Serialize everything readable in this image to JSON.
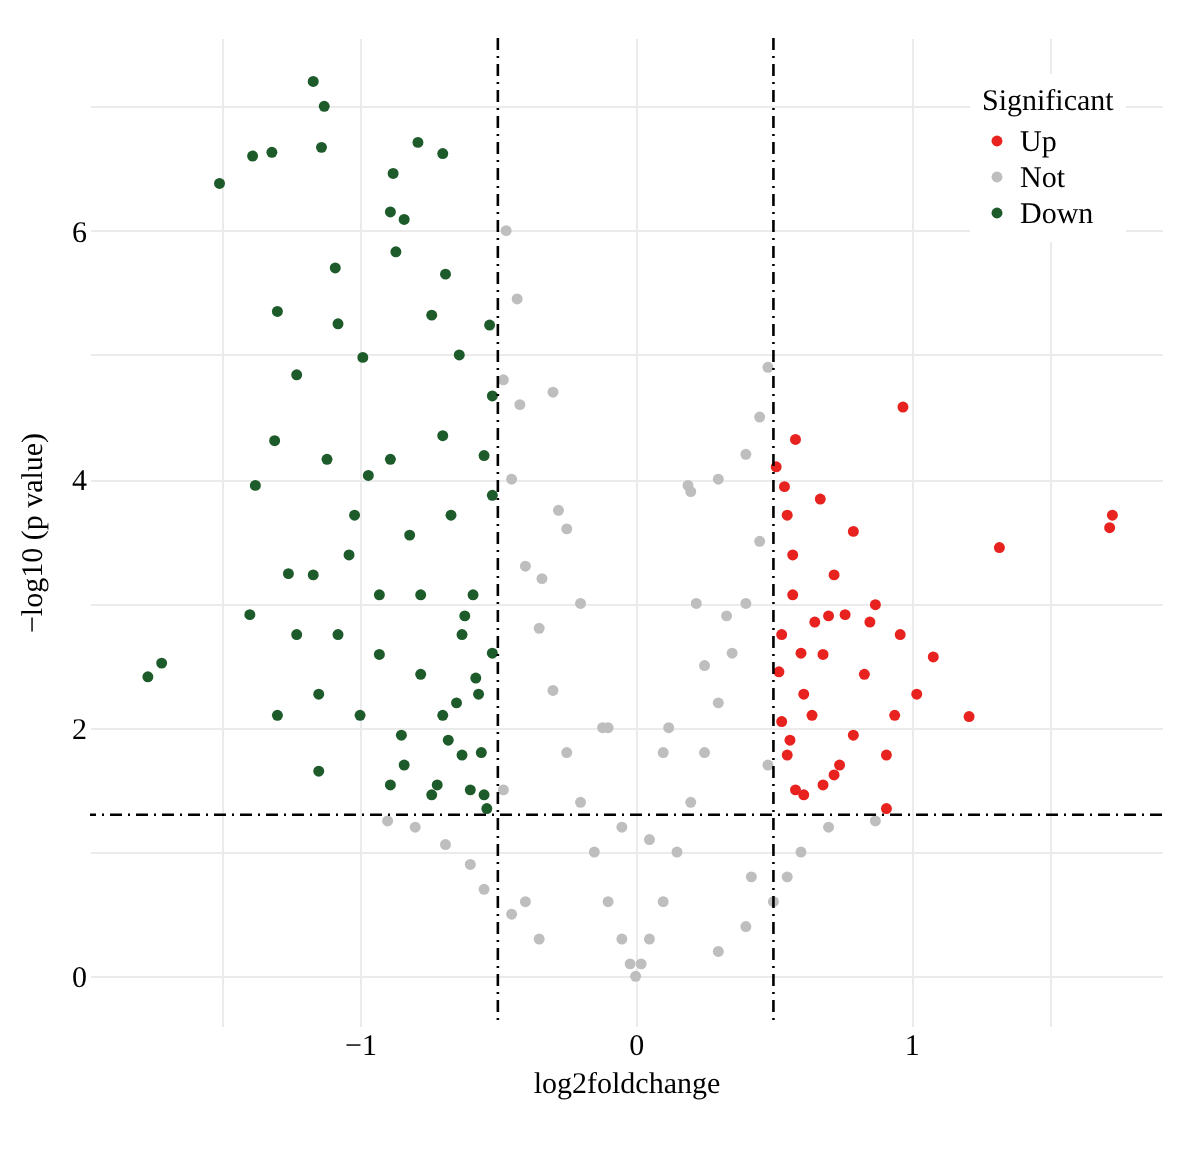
{
  "chart_data": {
    "type": "scatter",
    "xlabel": "log2foldchange",
    "ylabel": "−log10 (p value)",
    "legend_title": "Significant",
    "legend": "top right",
    "grid": true,
    "marker": "circle",
    "xlim": [
      -1.98,
      1.91
    ],
    "ylim": [
      -0.4,
      7.55
    ],
    "xticks": [
      {
        "value": -1.5,
        "label": null
      },
      -1,
      0,
      1,
      {
        "value": 1.5,
        "label": null
      }
    ],
    "yticks": [
      0,
      {
        "value": 1,
        "label": null
      },
      2,
      {
        "value": 3,
        "label": null
      },
      4,
      {
        "value": 5,
        "label": null
      },
      6,
      {
        "value": 7,
        "label": null
      }
    ],
    "ref_lines": [
      {
        "axis": "x",
        "value": -0.5,
        "line_style": "dashed",
        "color": "#000000"
      },
      {
        "axis": "x",
        "value": 0.5,
        "line_style": "dashed",
        "color": "#000000"
      },
      {
        "axis": "y",
        "value": 1.3,
        "line_style": "dashed",
        "color": "#000000"
      }
    ],
    "series": [
      {
        "name": "Up",
        "color": "#e8231f",
        "x": [
          0.97,
          1.73,
          1.72,
          1.32,
          0.58,
          0.54,
          0.67,
          0.79,
          0.57,
          1.08,
          0.96,
          1.21,
          0.87,
          0.76,
          0.68,
          0.61,
          0.55,
          0.91,
          0.79,
          0.72,
          0.64,
          0.53,
          0.57,
          1.02,
          0.83,
          0.68,
          0.61,
          0.91,
          0.55,
          0.72,
          0.94,
          0.51,
          0.52,
          0.56,
          0.6,
          0.65,
          0.7,
          0.74,
          0.85,
          0.58,
          0.53
        ],
        "values": [
          4.58,
          3.71,
          3.61,
          3.45,
          4.32,
          3.94,
          3.84,
          3.58,
          3.39,
          2.57,
          2.75,
          2.09,
          2.99,
          2.91,
          2.59,
          2.27,
          1.78,
          1.35,
          1.94,
          1.62,
          2.1,
          2.75,
          3.07,
          2.27,
          2.43,
          1.54,
          1.46,
          1.78,
          3.71,
          3.23,
          2.1,
          4.1,
          2.45,
          1.9,
          2.6,
          2.85,
          2.9,
          1.7,
          2.85,
          1.5,
          2.05
        ]
      },
      {
        "name": "Not",
        "color": "#bebebe",
        "x": [
          0,
          -0.02,
          0.02,
          -0.05,
          0.05,
          -0.1,
          0.1,
          -0.15,
          0.15,
          -0.2,
          0.2,
          -0.25,
          0.25,
          -0.3,
          0.3,
          -0.35,
          0.35,
          -0.4,
          0.4,
          -0.45,
          0.45,
          -0.48,
          0.48,
          -0.47,
          -0.3,
          -0.42,
          0.3,
          0.2,
          0.22,
          -0.1,
          0.1,
          -0.05,
          0.05,
          -0.2,
          -0.25,
          0.4,
          0.45,
          -0.12,
          0.12,
          -0.8,
          -0.69,
          -0.6,
          -0.55,
          -0.45,
          -0.35,
          0.6,
          0.7,
          0.87,
          0.55,
          0.4,
          0.3,
          -0.9,
          0.5,
          0.19,
          -0.43,
          -0.28,
          -0.34,
          0.33,
          0.25,
          -0.48,
          0.48,
          -0.4,
          0.42
        ],
        "values": [
          0,
          0.1,
          0.1,
          0.3,
          0.3,
          0.6,
          0.6,
          1,
          1,
          1.4,
          1.4,
          1.8,
          1.8,
          2.3,
          2.2,
          2.8,
          2.6,
          3.3,
          3,
          4,
          3.5,
          4.8,
          4.9,
          6,
          4.7,
          4.6,
          4,
          3.9,
          3,
          2,
          1.8,
          1.2,
          1.1,
          3,
          3.6,
          4.2,
          4.5,
          2,
          2,
          1.2,
          1.06,
          0.9,
          0.7,
          0.5,
          0.3,
          1,
          1.2,
          1.25,
          0.8,
          0.4,
          0.2,
          1.25,
          0.6,
          3.95,
          5.45,
          3.75,
          3.2,
          2.9,
          2.5,
          1.5,
          1.7,
          0.6,
          0.8
        ]
      },
      {
        "name": "Down",
        "color": "#1e5b2b",
        "x": [
          -1.17,
          -1.13,
          -1.14,
          -1.39,
          -1.32,
          -1.51,
          -0.79,
          -0.7,
          -0.88,
          -0.89,
          -0.84,
          -0.87,
          -1.09,
          -1.3,
          -0.69,
          -1.08,
          -0.99,
          -1.23,
          -0.74,
          -0.64,
          -1.31,
          -1.12,
          -1.38,
          -0.89,
          -1.02,
          -1.17,
          -1.26,
          -1.72,
          -1.77,
          -1.3,
          -1.15,
          -1.4,
          -0.93,
          -1.08,
          -0.78,
          -0.89,
          -0.74,
          -0.63,
          -0.55,
          -0.59,
          -0.52,
          -0.52,
          -0.53,
          -0.7,
          -0.82,
          -0.97,
          -1.04,
          -1.15,
          -1,
          -0.85,
          -0.7,
          -0.57,
          -1.23,
          -0.67,
          -0.78,
          -0.55,
          -0.93,
          -0.63,
          -0.72,
          -0.84,
          -0.54,
          -0.6,
          -0.65,
          -0.58,
          -0.52,
          -0.56,
          -0.62,
          -0.68
        ],
        "values": [
          7.2,
          7,
          6.67,
          6.6,
          6.63,
          6.38,
          6.71,
          6.62,
          6.46,
          6.15,
          6.09,
          5.83,
          5.7,
          5.35,
          5.65,
          5.25,
          4.98,
          4.84,
          5.32,
          5,
          4.31,
          4.16,
          3.95,
          4.16,
          3.71,
          3.23,
          3.24,
          2.52,
          2.41,
          2.1,
          1.65,
          2.91,
          3.07,
          2.75,
          2.43,
          1.54,
          1.46,
          1.78,
          1.46,
          3.07,
          3.87,
          4.67,
          5.24,
          4.35,
          3.55,
          4.03,
          3.39,
          2.27,
          2.1,
          1.94,
          2.1,
          2.27,
          2.75,
          3.71,
          3.07,
          4.19,
          2.59,
          2.75,
          1.54,
          1.7,
          1.35,
          1.5,
          2.2,
          2.4,
          2.6,
          1.8,
          2.9,
          1.9
        ]
      }
    ]
  }
}
